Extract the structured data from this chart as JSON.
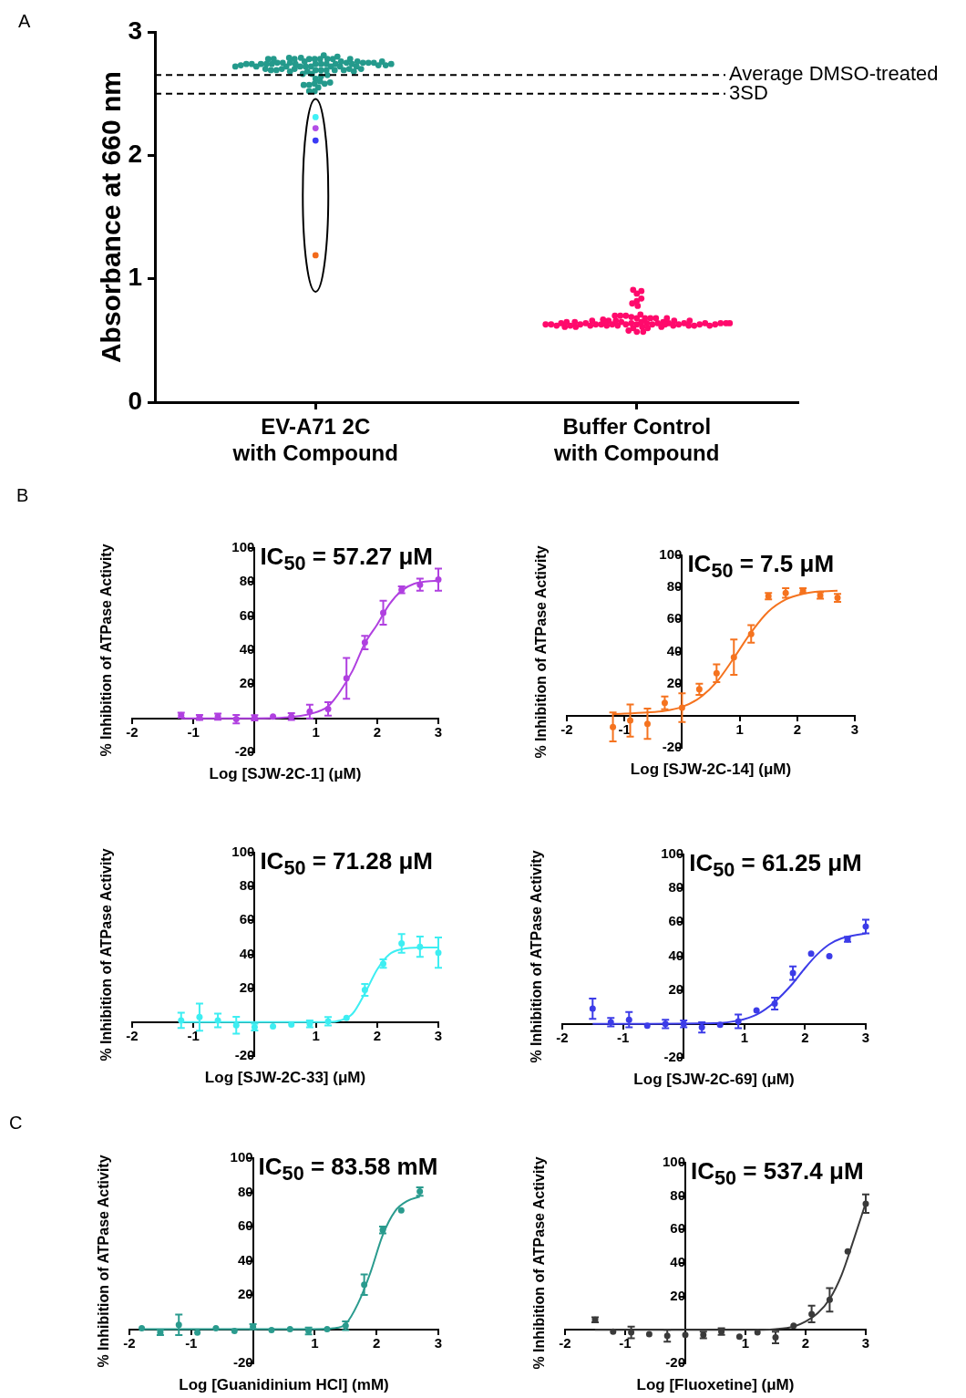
{
  "chart_data": [
    {
      "type": "scatter",
      "ylabel": "Absorbance at 660 nm",
      "categories": [
        "EV-A71 2C\nwith Compound",
        "Buffer Control\nwith Compound"
      ],
      "ylim": [
        0,
        3
      ],
      "yticks": [
        0,
        1,
        2,
        3
      ],
      "annotations": [
        "A"
      ],
      "ref_lines": [
        {
          "axis": "y",
          "value": 2.65,
          "label": "Average DMSO-treated",
          "color": "#000000",
          "line_style": "dashed"
        },
        {
          "axis": "y",
          "value": 2.5,
          "label": "3SD",
          "color": "#000000",
          "line_style": "dashed"
        }
      ],
      "series": [
        {
          "type": "scatter",
          "marker": "circle",
          "color": "#249a8c",
          "x": [
            "EV-A71 2C\nwith Compound",
            "EV-A71 2C\nwith Compound",
            "EV-A71 2C\nwith Compound",
            "EV-A71 2C\nwith Compound",
            "EV-A71 2C\nwith Compound",
            "EV-A71 2C\nwith Compound",
            "EV-A71 2C\nwith Compound",
            "EV-A71 2C\nwith Compound",
            "EV-A71 2C\nwith Compound",
            "EV-A71 2C\nwith Compound",
            "EV-A71 2C\nwith Compound",
            "EV-A71 2C\nwith Compound",
            "EV-A71 2C\nwith Compound",
            "EV-A71 2C\nwith Compound",
            "EV-A71 2C\nwith Compound",
            "EV-A71 2C\nwith Compound",
            "EV-A71 2C\nwith Compound",
            "EV-A71 2C\nwith Compound",
            "EV-A71 2C\nwith Compound",
            "EV-A71 2C\nwith Compound",
            "EV-A71 2C\nwith Compound",
            "EV-A71 2C\nwith Compound",
            "EV-A71 2C\nwith Compound",
            "EV-A71 2C\nwith Compound",
            "EV-A71 2C\nwith Compound",
            "EV-A71 2C\nwith Compound",
            "EV-A71 2C\nwith Compound",
            "EV-A71 2C\nwith Compound",
            "EV-A71 2C\nwith Compound",
            "EV-A71 2C\nwith Compound",
            "EV-A71 2C\nwith Compound",
            "EV-A71 2C\nwith Compound",
            "EV-A71 2C\nwith Compound",
            "EV-A71 2C\nwith Compound",
            "EV-A71 2C\nwith Compound",
            "EV-A71 2C\nwith Compound",
            "EV-A71 2C\nwith Compound",
            "EV-A71 2C\nwith Compound",
            "EV-A71 2C\nwith Compound",
            "EV-A71 2C\nwith Compound",
            "EV-A71 2C\nwith Compound",
            "EV-A71 2C\nwith Compound",
            "EV-A71 2C\nwith Compound",
            "EV-A71 2C\nwith Compound",
            "EV-A71 2C\nwith Compound",
            "EV-A71 2C\nwith Compound",
            "EV-A71 2C\nwith Compound",
            "EV-A71 2C\nwith Compound",
            "EV-A71 2C\nwith Compound",
            "EV-A71 2C\nwith Compound",
            "EV-A71 2C\nwith Compound",
            "EV-A71 2C\nwith Compound",
            "EV-A71 2C\nwith Compound",
            "EV-A71 2C\nwith Compound",
            "EV-A71 2C\nwith Compound",
            "EV-A71 2C\nwith Compound",
            "EV-A71 2C\nwith Compound",
            "EV-A71 2C\nwith Compound",
            "EV-A71 2C\nwith Compound",
            "EV-A71 2C\nwith Compound",
            "EV-A71 2C\nwith Compound",
            "EV-A71 2C\nwith Compound",
            "EV-A71 2C\nwith Compound",
            "EV-A71 2C\nwith Compound",
            "EV-A71 2C\nwith Compound",
            "EV-A71 2C\nwith Compound",
            "EV-A71 2C\nwith Compound",
            "EV-A71 2C\nwith Compound",
            "EV-A71 2C\nwith Compound",
            "EV-A71 2C\nwith Compound",
            "EV-A71 2C\nwith Compound",
            "EV-A71 2C\nwith Compound",
            "EV-A71 2C\nwith Compound",
            "EV-A71 2C\nwith Compound",
            "EV-A71 2C\nwith Compound",
            "EV-A71 2C\nwith Compound",
            "EV-A71 2C\nwith Compound"
          ],
          "values": [
            2.74,
            2.78,
            2.72,
            2.74,
            2.78,
            2.72,
            2.74,
            2.78,
            2.72,
            2.72,
            2.74,
            2.81,
            2.74,
            2.69,
            2.75,
            2.69,
            2.76,
            2.7,
            2.78,
            2.72,
            2.66,
            2.76,
            2.69,
            2.79,
            2.72,
            2.62,
            2.75,
            2.69,
            2.58,
            2.75,
            2.69,
            2.55,
            2.74,
            2.68,
            2.6,
            2.52,
            2.75,
            2.7,
            2.64,
            2.57,
            2.78,
            2.72,
            2.66,
            2.52,
            2.74,
            2.68,
            2.58,
            2.76,
            2.7,
            2.57,
            2.75,
            2.69,
            2.59,
            2.74,
            2.69,
            2.75,
            2.7,
            2.74,
            2.68,
            2.75,
            2.7,
            2.78,
            2.72,
            2.65,
            2.79,
            2.74,
            2.78,
            2.73,
            2.76,
            2.8,
            2.74,
            2.78,
            2.73,
            2.73,
            2.78,
            2.74,
            2.72
          ]
        },
        {
          "type": "scatter",
          "marker": "circle",
          "color": "#ff0a6c",
          "x": [
            "Buffer Control\nwith Compound",
            "Buffer Control\nwith Compound",
            "Buffer Control\nwith Compound",
            "Buffer Control\nwith Compound",
            "Buffer Control\nwith Compound",
            "Buffer Control\nwith Compound",
            "Buffer Control\nwith Compound",
            "Buffer Control\nwith Compound",
            "Buffer Control\nwith Compound",
            "Buffer Control\nwith Compound",
            "Buffer Control\nwith Compound",
            "Buffer Control\nwith Compound",
            "Buffer Control\nwith Compound",
            "Buffer Control\nwith Compound",
            "Buffer Control\nwith Compound",
            "Buffer Control\nwith Compound",
            "Buffer Control\nwith Compound",
            "Buffer Control\nwith Compound",
            "Buffer Control\nwith Compound",
            "Buffer Control\nwith Compound",
            "Buffer Control\nwith Compound",
            "Buffer Control\nwith Compound",
            "Buffer Control\nwith Compound",
            "Buffer Control\nwith Compound",
            "Buffer Control\nwith Compound",
            "Buffer Control\nwith Compound",
            "Buffer Control\nwith Compound",
            "Buffer Control\nwith Compound",
            "Buffer Control\nwith Compound",
            "Buffer Control\nwith Compound",
            "Buffer Control\nwith Compound",
            "Buffer Control\nwith Compound",
            "Buffer Control\nwith Compound",
            "Buffer Control\nwith Compound",
            "Buffer Control\nwith Compound",
            "Buffer Control\nwith Compound",
            "Buffer Control\nwith Compound",
            "Buffer Control\nwith Compound",
            "Buffer Control\nwith Compound",
            "Buffer Control\nwith Compound",
            "Buffer Control\nwith Compound",
            "Buffer Control\nwith Compound",
            "Buffer Control\nwith Compound",
            "Buffer Control\nwith Compound",
            "Buffer Control\nwith Compound",
            "Buffer Control\nwith Compound",
            "Buffer Control\nwith Compound",
            "Buffer Control\nwith Compound",
            "Buffer Control\nwith Compound",
            "Buffer Control\nwith Compound",
            "Buffer Control\nwith Compound",
            "Buffer Control\nwith Compound",
            "Buffer Control\nwith Compound",
            "Buffer Control\nwith Compound",
            "Buffer Control\nwith Compound",
            "Buffer Control\nwith Compound",
            "Buffer Control\nwith Compound",
            "Buffer Control\nwith Compound",
            "Buffer Control\nwith Compound",
            "Buffer Control\nwith Compound",
            "Buffer Control\nwith Compound",
            "Buffer Control\nwith Compound",
            "Buffer Control\nwith Compound",
            "Buffer Control\nwith Compound",
            "Buffer Control\nwith Compound",
            "Buffer Control\nwith Compound",
            "Buffer Control\nwith Compound",
            "Buffer Control\nwith Compound",
            "Buffer Control\nwith Compound",
            "Buffer Control\nwith Compound",
            "Buffer Control\nwith Compound"
          ],
          "values": [
            0.63,
            0.64,
            0.65,
            0.64,
            0.63,
            0.65,
            0.63,
            0.62,
            0.64,
            0.63,
            0.65,
            0.68,
            0.62,
            0.69,
            0.64,
            0.61,
            0.68,
            0.66,
            0.57,
            0.63,
            0.7,
            0.62,
            0.66,
            0.61,
            0.68,
            0.63,
            0.6,
            0.66,
            0.63,
            0.7,
            0.62,
            0.64,
            0.88,
            0.82,
            0.91,
            0.9,
            0.8,
            0.84,
            0.78,
            0.57,
            0.64,
            0.68,
            0.62,
            0.63,
            0.62,
            0.61,
            0.63,
            0.62,
            0.64,
            0.68,
            0.61,
            0.66,
            0.62,
            0.64,
            0.6,
            0.63,
            0.67,
            0.7,
            0.58,
            0.62,
            0.71,
            0.64,
            0.63,
            0.65,
            0.64,
            0.65,
            0.63,
            0.66,
            0.64,
            0.63,
            0.64
          ]
        },
        {
          "type": "scatter",
          "marker": "circle",
          "colors": [
            "#3ff0f5",
            "#b34de6",
            "#3b3bf5",
            "#f26a1b"
          ],
          "x": [
            "EV-A71 2C\nwith Compound",
            "EV-A71 2C\nwith Compound",
            "EV-A71 2C\nwith Compound",
            "EV-A71 2C\nwith Compound"
          ],
          "values": [
            2.31,
            2.22,
            2.12,
            1.19
          ]
        }
      ]
    },
    {
      "type": "scatter",
      "title": "IC$_{50}$ = 57.27 μM",
      "xlabel": "Log [SJW-2C-1] (μM)",
      "ylabel": "% Inhibition of ATPase Activity",
      "xlim": [
        -2,
        3
      ],
      "ylim": [
        -20,
        100
      ],
      "xticks": [
        -2,
        -1,
        1,
        2,
        3
      ],
      "yticks": [
        -20,
        20,
        40,
        60,
        80,
        100
      ],
      "annotations": [
        "B"
      ],
      "series": [
        {
          "type": "scatter",
          "marker": "circle",
          "color": "#b040e0",
          "x": [
            -1.2,
            -0.9,
            -0.6,
            -0.3,
            0,
            0.3,
            0.6,
            0.9,
            1.2,
            1.5,
            1.8,
            2.1,
            2.4,
            2.7,
            3
          ],
          "values": [
            1.8,
            0.5,
            1,
            -0.5,
            0.3,
            1,
            1,
            4,
            5.5,
            23.5,
            44.5,
            62,
            75.5,
            78.5,
            81.5
          ],
          "errors": [
            1.5,
            1.5,
            1.8,
            2.5,
            1.5,
            null,
            2,
            4,
            4,
            12,
            4,
            7,
            2,
            3.5,
            6.5
          ]
        },
        {
          "type": "line",
          "marker": "none",
          "color": "#b040e0",
          "x": [
            -1.2,
            0,
            0.5,
            0.9,
            1.2,
            1.4,
            1.6,
            1.8,
            2,
            2.2,
            2.4,
            2.6,
            3
          ],
          "values": [
            0,
            0,
            0.5,
            2.5,
            7,
            16,
            28,
            44,
            55,
            67,
            75,
            79,
            81
          ]
        }
      ]
    },
    {
      "type": "scatter",
      "title": "IC$_{50}$ = 7.5 μM",
      "xlabel": "Log [SJW-2C-14] (μM)",
      "ylabel": "% Inhibition of ATPase Activity",
      "xlim": [
        -2,
        3
      ],
      "ylim": [
        -20,
        100
      ],
      "xticks": [
        -2,
        -1,
        1,
        2,
        3
      ],
      "yticks": [
        -20,
        20,
        40,
        60,
        80,
        100
      ],
      "series": [
        {
          "type": "scatter",
          "marker": "circle",
          "color": "#f5731f",
          "x": [
            -1.2,
            -0.9,
            -0.6,
            -0.3,
            0,
            0.3,
            0.6,
            0.9,
            1.2,
            1.5,
            1.8,
            2.1,
            2.4,
            2.7
          ],
          "values": [
            -7,
            -3,
            -5,
            8,
            5,
            16.5,
            26.5,
            36.5,
            51,
            74.5,
            76.5,
            78,
            75,
            73.5
          ],
          "errors": [
            9,
            10,
            9.5,
            4,
            9,
            3.5,
            5.5,
            11,
            5.5,
            2,
            3,
            1.5,
            2,
            2.5
          ]
        },
        {
          "type": "line",
          "marker": "none",
          "color": "#f5731f",
          "x": [
            -1.2,
            -0.6,
            -0.3,
            0,
            0.3,
            0.6,
            0.9,
            1.2,
            1.5,
            1.8,
            2.1,
            2.4,
            2.7
          ],
          "values": [
            1,
            2,
            3,
            5.5,
            11,
            21,
            36,
            52,
            65,
            72.5,
            76,
            77.5,
            78
          ]
        }
      ]
    },
    {
      "type": "scatter",
      "title": "IC$_{50}$ = 71.28 μM",
      "xlabel": "Log [SJW-2C-33] (μM)",
      "ylabel": "% Inhibition of ATPase Activity",
      "xlim": [
        -2,
        3
      ],
      "ylim": [
        -20,
        100
      ],
      "xticks": [
        -2,
        -1,
        1,
        2,
        3
      ],
      "yticks": [
        -20,
        20,
        40,
        60,
        80,
        100
      ],
      "series": [
        {
          "type": "scatter",
          "marker": "circle",
          "color": "#3deef2",
          "x": [
            -1.2,
            -0.9,
            -0.6,
            -0.3,
            0,
            0.3,
            0.6,
            0.9,
            1.2,
            1.5,
            1.8,
            2.1,
            2.4,
            2.7,
            3
          ],
          "values": [
            1,
            3,
            1,
            -1.8,
            -2.9,
            -2.5,
            -1.4,
            -1,
            0.5,
            2.5,
            19,
            34.5,
            46.5,
            44.5,
            41
          ],
          "errors": [
            4.5,
            8,
            4,
            5,
            2,
            null,
            null,
            2,
            2.5,
            null,
            3.5,
            2.5,
            5.5,
            6,
            9
          ]
        },
        {
          "type": "line",
          "marker": "none",
          "color": "#3deef2",
          "x": [
            -1.2,
            1.2,
            1.4,
            1.6,
            1.8,
            2,
            2.2,
            2.4,
            2.7,
            3
          ],
          "values": [
            0,
            0,
            1,
            5,
            17,
            31,
            40,
            43,
            44,
            44
          ]
        }
      ]
    },
    {
      "type": "scatter",
      "title": "IC$_{50}$ = 61.25 μM",
      "xlabel": "Log [SJW-2C-69] (μM)",
      "ylabel": "% Inhibition of ATPase Activity",
      "xlim": [
        -2,
        3
      ],
      "ylim": [
        -20,
        100
      ],
      "xticks": [
        -2,
        -1,
        1,
        2,
        3
      ],
      "yticks": [
        -20,
        20,
        40,
        60,
        80,
        100
      ],
      "series": [
        {
          "type": "scatter",
          "marker": "circle",
          "color": "#3c3ce8",
          "x": [
            -1.5,
            -1.2,
            -0.9,
            -0.6,
            -0.3,
            0,
            0.3,
            0.6,
            0.9,
            1.2,
            1.5,
            1.8,
            2.1,
            2.4,
            2.7,
            3
          ],
          "values": [
            9,
            1,
            2.5,
            -1,
            0,
            0,
            -2,
            -0.5,
            1.5,
            8,
            12,
            30,
            41.5,
            40,
            50,
            57.5
          ],
          "errors": [
            6,
            2.5,
            4.5,
            null,
            2.5,
            2,
            3,
            null,
            4,
            null,
            3.5,
            4,
            null,
            null,
            1.5,
            4
          ]
        },
        {
          "type": "line",
          "marker": "none",
          "color": "#3c3ce8",
          "x": [
            -1.5,
            0.5,
            0.9,
            1.2,
            1.5,
            1.8,
            2,
            2.2,
            2.4,
            2.6,
            3
          ],
          "values": [
            0,
            0.5,
            2,
            5.5,
            13,
            24,
            33,
            41,
            47,
            50.5,
            53.5
          ]
        }
      ]
    },
    {
      "type": "scatter",
      "title": "IC$_{50}$ = 83.58 mM",
      "xlabel": "Log [Guanidinium HCl] (mM)",
      "ylabel": "% Inhibition of ATPase Activity",
      "xlim": [
        -2,
        3
      ],
      "ylim": [
        -20,
        100
      ],
      "xticks": [
        -2,
        -1,
        1,
        2,
        3
      ],
      "yticks": [
        -20,
        20,
        40,
        60,
        80,
        100
      ],
      "annotations": [
        "C"
      ],
      "series": [
        {
          "type": "scatter",
          "marker": "circle",
          "color": "#2a9b8e",
          "x": [
            -1.8,
            -1.5,
            -1.2,
            -0.9,
            -0.6,
            -0.3,
            0,
            0.3,
            0.6,
            0.9,
            1.2,
            1.5,
            1.8,
            2.1,
            2.4,
            2.7
          ],
          "values": [
            0.5,
            -2,
            2.5,
            -2,
            0.5,
            -1,
            1.5,
            -0.5,
            0,
            -1,
            0,
            2,
            26,
            58,
            69.5,
            80.5
          ],
          "errors": [
            null,
            1.5,
            6,
            null,
            null,
            null,
            1.5,
            null,
            null,
            2,
            null,
            2.5,
            6,
            2,
            null,
            2.5
          ]
        },
        {
          "type": "line",
          "marker": "none",
          "color": "#2a9b8e",
          "x": [
            -1.8,
            1,
            1.3,
            1.5,
            1.7,
            1.9,
            2.1,
            2.3,
            2.5,
            2.7
          ],
          "values": [
            0,
            0,
            0.5,
            3,
            15,
            33,
            55,
            69,
            75,
            77.5
          ]
        }
      ]
    },
    {
      "type": "scatter",
      "title": "IC$_{50}$ = 537.4 μM",
      "xlabel": "Log [Fluoxetine] (μM)",
      "ylabel": "% Inhibition of ATPase Activity",
      "xlim": [
        -2,
        3
      ],
      "ylim": [
        -20,
        100
      ],
      "xticks": [
        -2,
        -1,
        1,
        2,
        3
      ],
      "yticks": [
        -20,
        20,
        40,
        60,
        80,
        100
      ],
      "series": [
        {
          "type": "scatter",
          "marker": "circle",
          "color": "#3a3a3a",
          "x": [
            -1.5,
            -1.2,
            -0.9,
            -0.6,
            -0.3,
            0,
            0.3,
            0.6,
            0.9,
            1.2,
            1.5,
            1.8,
            2.1,
            2.4,
            2.7,
            3
          ],
          "values": [
            6,
            -1,
            -1.5,
            -2.5,
            -3.5,
            -3,
            -3,
            -1,
            -4,
            -1.5,
            -4.5,
            2.5,
            9.5,
            18,
            47,
            75.5
          ],
          "errors": [
            1.5,
            null,
            3.5,
            null,
            3.5,
            null,
            2,
            2,
            null,
            null,
            3.5,
            null,
            5,
            7,
            null,
            5.5
          ]
        },
        {
          "type": "line",
          "marker": "none",
          "color": "#3a3a3a",
          "x": [
            -1.5,
            1,
            1.5,
            1.8,
            2,
            2.2,
            2.4,
            2.6,
            2.8,
            3
          ],
          "values": [
            0,
            0,
            0.5,
            2,
            5,
            10,
            18.5,
            33,
            54,
            76
          ]
        }
      ]
    }
  ]
}
